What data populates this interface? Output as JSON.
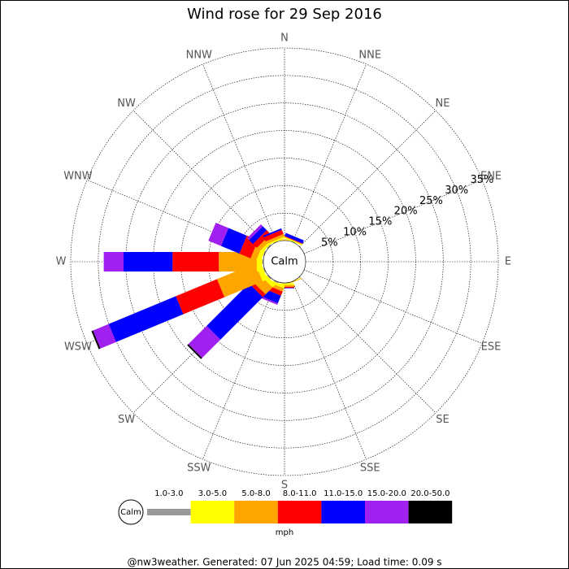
{
  "chart_data": {
    "type": "windrose",
    "title": "Wind rose for 29 Sep 2016",
    "categories": [
      "N",
      "NNE",
      "NE",
      "ENE",
      "E",
      "ESE",
      "SE",
      "SSE",
      "S",
      "SSW",
      "SW",
      "WSW",
      "W",
      "WNW",
      "NW",
      "NNW"
    ],
    "rlim": [
      0,
      35
    ],
    "rticks": [
      {
        "value": 5,
        "label": "5%"
      },
      {
        "value": 10,
        "label": "10%"
      },
      {
        "value": 15,
        "label": "15%"
      },
      {
        "value": 20,
        "label": "20%"
      },
      {
        "value": 25,
        "label": "25%"
      },
      {
        "value": 30,
        "label": "30%"
      },
      {
        "value": 35,
        "label": "35%"
      }
    ],
    "calm_label": "Calm",
    "units": "mph",
    "series": [
      {
        "name": "1.0-3.0",
        "color": "#999999",
        "values": [
          0,
          0.1,
          0,
          0,
          0,
          0,
          0,
          0,
          0.1,
          0.2,
          0.2,
          0.2,
          0.2,
          0.2,
          0.2,
          0.1
        ]
      },
      {
        "name": "3.0-5.0",
        "color": "#ffff00",
        "values": [
          0.1,
          0.2,
          0,
          0,
          0,
          0,
          0,
          0.1,
          0.3,
          0.5,
          0.8,
          1.0,
          1.0,
          0.8,
          0.5,
          0.3
        ]
      },
      {
        "name": "5.0-8.0",
        "color": "#ffa500",
        "values": [
          0.1,
          0.1,
          0,
          0,
          0,
          0,
          0,
          0.1,
          0.3,
          0.6,
          1.8,
          7.5,
          6.9,
          1.1,
          0.8,
          0.5
        ]
      },
      {
        "name": "8.0-11.0",
        "color": "#ff0000",
        "values": [
          0,
          0.1,
          0,
          0,
          0,
          0,
          0,
          0,
          0.2,
          0.8,
          0.7,
          8.1,
          8.4,
          2.2,
          1.0,
          0.8
        ]
      },
      {
        "name": "11.0-15.0",
        "color": "#0000ff",
        "values": [
          0,
          0.6,
          0,
          0,
          0,
          0,
          0,
          0,
          0.1,
          1.5,
          10.9,
          13.2,
          8.9,
          3.6,
          1.0,
          0.3
        ]
      },
      {
        "name": "15.0-20.0",
        "color": "#a020f0",
        "values": [
          0,
          0,
          0,
          0,
          0,
          0,
          0,
          0,
          0,
          0.3,
          4.7,
          3.1,
          3.6,
          2.5,
          0.5,
          0
        ]
      },
      {
        "name": "20.0-50.0",
        "color": "#000000",
        "values": [
          0,
          0,
          0,
          0,
          0,
          0,
          0,
          0,
          0,
          0,
          0.3,
          0.3,
          0,
          0,
          0,
          0
        ]
      }
    ],
    "footer": "@nw3weather. Generated: 07 Jun 2025 04:59; Load time: 0.09 s"
  }
}
